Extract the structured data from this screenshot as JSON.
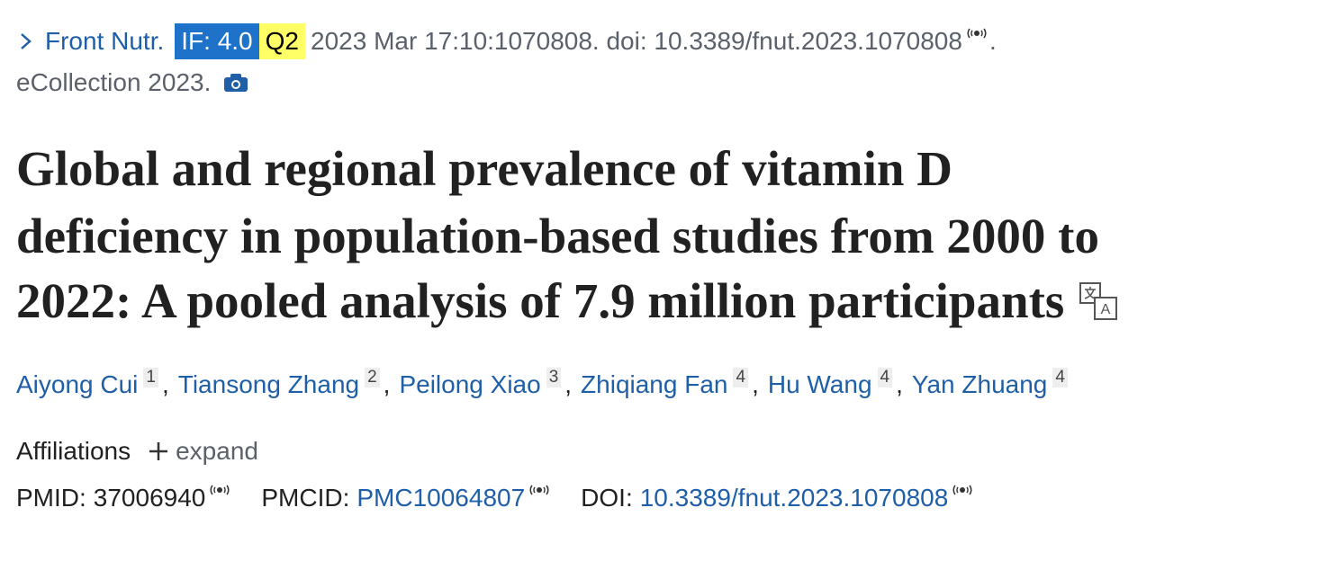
{
  "citation": {
    "journal": "Front Nutr.",
    "impact_factor": "IF: 4.0",
    "quartile": "Q2",
    "text": "2023 Mar 17:10:1070808. doi: 10.3389/fnut.2023.1070808",
    "end": ".",
    "ecollection": "eCollection 2023."
  },
  "title_lines": [
    "Global and regional prevalence of vitamin D",
    "deficiency in population-based studies from 2000 to",
    "2022: A pooled analysis of 7.9 million participants"
  ],
  "authors": [
    {
      "name": "Aiyong Cui",
      "affiliation": "1"
    },
    {
      "name": "Tiansong Zhang",
      "affiliation": "2"
    },
    {
      "name": "Peilong Xiao",
      "affiliation": "3"
    },
    {
      "name": "Zhiqiang Fan",
      "affiliation": "4"
    },
    {
      "name": "Hu Wang",
      "affiliation": "4"
    },
    {
      "name": "Yan Zhuang",
      "affiliation": "4"
    }
  ],
  "author_separator": ",",
  "affiliations": {
    "label": "Affiliations",
    "action": "expand"
  },
  "identifiers": {
    "pmid_label": "PMID:",
    "pmid": "37006940",
    "pmcid_label": "PMCID:",
    "pmcid": "PMC10064807",
    "doi_label": "DOI:",
    "doi": "10.3389/fnut.2023.1070808"
  }
}
